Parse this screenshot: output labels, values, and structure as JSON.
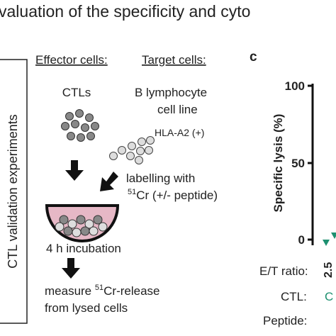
{
  "header": {
    "title": "valuation of the specificity and cyto"
  },
  "side_label": "CTL validation experiments",
  "schematic": {
    "effector_heading": "Effector cells:",
    "target_heading": "Target cells:",
    "effector_name": "CTLs",
    "target_name": [
      "B  lymphocyte",
      "cell line"
    ],
    "target_marker": "HLA-A2 (+)",
    "labelling": {
      "line1": "labelling with",
      "isotope_mass": "51",
      "line2": "Cr (+/- peptide)"
    },
    "incubation": "4 h incubation",
    "measure": {
      "prefix": "measure ",
      "isotope_mass": "51",
      "suffix": "Cr-release",
      "line2": "from lysed cells"
    }
  },
  "panel_c": {
    "panel_label": "c",
    "y_label": "Specific lysis (%)",
    "yticks": [
      "100",
      "50",
      "0"
    ],
    "row_labels": {
      "et_ratio": "E/T ratio:",
      "ctl": "CTL:",
      "peptide": "Peptide:"
    },
    "et_value": "2.5",
    "ctl_value": "C"
  }
}
